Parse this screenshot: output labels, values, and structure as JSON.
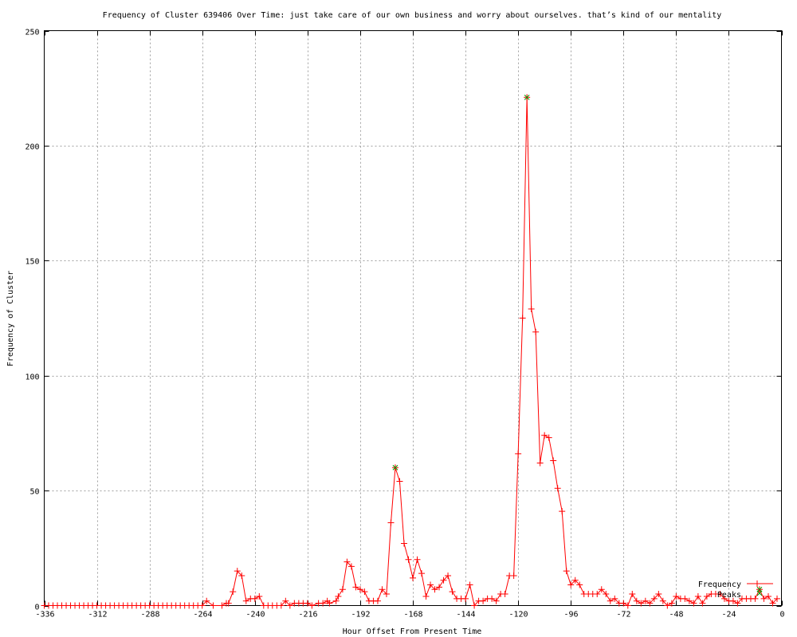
{
  "chart_data": {
    "type": "line",
    "title": "Frequency of Cluster 639406 Over Time: just take care of our own business and worry about ourselves. that’s kind of our mentality",
    "xlabel": "Hour Offset From Present Time",
    "ylabel": "Frequency of Cluster",
    "xlim": [
      -336,
      0
    ],
    "ylim": [
      0,
      250
    ],
    "xticks": [
      -336,
      -312,
      -288,
      -264,
      -240,
      -216,
      -192,
      -168,
      -144,
      -120,
      -96,
      -72,
      -48,
      -24,
      0
    ],
    "yticks": [
      0,
      50,
      100,
      150,
      200,
      250
    ],
    "grid": true,
    "legend_position": "bottom-right",
    "colors": {
      "frequency": "#ff0000",
      "peaks": "#00a000",
      "grid": "#a0a0a0"
    },
    "series": [
      {
        "name": "Frequency",
        "marker": "plus",
        "points": [
          [
            -336,
            0
          ],
          [
            -334,
            0
          ],
          [
            -332,
            0
          ],
          [
            -330,
            0
          ],
          [
            -328,
            0
          ],
          [
            -326,
            0
          ],
          [
            -324,
            0
          ],
          [
            -322,
            0
          ],
          [
            -320,
            0
          ],
          [
            -318,
            0
          ],
          [
            -316,
            0
          ],
          [
            -314,
            0
          ],
          [
            -312,
            0
          ],
          [
            -310,
            0
          ],
          [
            -308,
            0
          ],
          [
            -306,
            0
          ],
          [
            -304,
            0
          ],
          [
            -302,
            0
          ],
          [
            -300,
            0
          ],
          [
            -298,
            0
          ],
          [
            -296,
            0
          ],
          [
            -294,
            0
          ],
          [
            -292,
            0
          ],
          [
            -290,
            0
          ],
          [
            -288,
            0
          ],
          [
            -286,
            0
          ],
          [
            -284,
            0
          ],
          [
            -282,
            0
          ],
          [
            -280,
            0
          ],
          [
            -278,
            0
          ],
          [
            -276,
            0
          ],
          [
            -274,
            0
          ],
          [
            -272,
            0
          ],
          [
            -270,
            0
          ],
          [
            -268,
            0
          ],
          [
            -266,
            0
          ],
          [
            -264,
            0
          ],
          [
            -262,
            2
          ],
          [
            -259,
            0
          ],
          [
            -255,
            0
          ],
          [
            -253,
            1
          ],
          [
            -252,
            1
          ],
          [
            -250,
            6
          ],
          [
            -248,
            15
          ],
          [
            -246,
            13
          ],
          [
            -244,
            2
          ],
          [
            -242,
            3
          ],
          [
            -240,
            3
          ],
          [
            -238,
            4
          ],
          [
            -236,
            0
          ],
          [
            -234,
            0
          ],
          [
            -232,
            0
          ],
          [
            -230,
            0
          ],
          [
            -228,
            0
          ],
          [
            -226,
            2
          ],
          [
            -224,
            0
          ],
          [
            -222,
            1
          ],
          [
            -220,
            1
          ],
          [
            -218,
            1
          ],
          [
            -216,
            1
          ],
          [
            -214,
            0
          ],
          [
            -211,
            1
          ],
          [
            -209,
            1
          ],
          [
            -207,
            2
          ],
          [
            -206,
            1
          ],
          [
            -203,
            2
          ],
          [
            -202,
            4
          ],
          [
            -200,
            7
          ],
          [
            -198,
            19
          ],
          [
            -196,
            17
          ],
          [
            -194,
            8
          ],
          [
            -192,
            7
          ],
          [
            -190,
            6
          ],
          [
            -188,
            2
          ],
          [
            -186,
            2
          ],
          [
            -184,
            2
          ],
          [
            -182,
            7
          ],
          [
            -180,
            5
          ],
          [
            -178,
            36
          ],
          [
            -176,
            60
          ],
          [
            -174,
            54
          ],
          [
            -172,
            27
          ],
          [
            -170,
            20
          ],
          [
            -168,
            12
          ],
          [
            -166,
            20
          ],
          [
            -164,
            14
          ],
          [
            -162,
            4
          ],
          [
            -160,
            9
          ],
          [
            -158,
            7
          ],
          [
            -156,
            8
          ],
          [
            -154,
            11
          ],
          [
            -152,
            13
          ],
          [
            -150,
            6
          ],
          [
            -148,
            3
          ],
          [
            -146,
            3
          ],
          [
            -144,
            3
          ],
          [
            -142,
            9
          ],
          [
            -140,
            0
          ],
          [
            -138,
            2
          ],
          [
            -136,
            2
          ],
          [
            -134,
            3
          ],
          [
            -132,
            3
          ],
          [
            -130,
            2
          ],
          [
            -128,
            5
          ],
          [
            -126,
            5
          ],
          [
            -124,
            13
          ],
          [
            -122,
            13
          ],
          [
            -120,
            66
          ],
          [
            -118,
            125
          ],
          [
            -116,
            221
          ],
          [
            -114,
            129
          ],
          [
            -112,
            119
          ],
          [
            -110,
            62
          ],
          [
            -108,
            74
          ],
          [
            -106,
            73
          ],
          [
            -104,
            63
          ],
          [
            -102,
            51
          ],
          [
            -100,
            41
          ],
          [
            -98,
            15
          ],
          [
            -96,
            9
          ],
          [
            -94,
            11
          ],
          [
            -92,
            9
          ],
          [
            -90,
            5
          ],
          [
            -88,
            5
          ],
          [
            -86,
            5
          ],
          [
            -84,
            5
          ],
          [
            -82,
            7
          ],
          [
            -80,
            5
          ],
          [
            -78,
            2
          ],
          [
            -76,
            3
          ],
          [
            -74,
            1
          ],
          [
            -72,
            1
          ],
          [
            -70,
            0
          ],
          [
            -68,
            5
          ],
          [
            -66,
            2
          ],
          [
            -64,
            1
          ],
          [
            -62,
            2
          ],
          [
            -60,
            1
          ],
          [
            -58,
            3
          ],
          [
            -56,
            5
          ],
          [
            -54,
            2
          ],
          [
            -52,
            0
          ],
          [
            -50,
            1
          ],
          [
            -48,
            4
          ],
          [
            -46,
            3
          ],
          [
            -44,
            3
          ],
          [
            -42,
            2
          ],
          [
            -40,
            1
          ],
          [
            -38,
            4
          ],
          [
            -36,
            1
          ],
          [
            -34,
            4
          ],
          [
            -32,
            5
          ],
          [
            -30,
            5
          ],
          [
            -28,
            5
          ],
          [
            -26,
            3
          ],
          [
            -24,
            2
          ],
          [
            -22,
            2
          ],
          [
            -20,
            1
          ],
          [
            -18,
            3
          ],
          [
            -16,
            3
          ],
          [
            -14,
            3
          ],
          [
            -12,
            3
          ],
          [
            -10,
            7
          ],
          [
            -8,
            3
          ],
          [
            -6,
            4
          ],
          [
            -4,
            1
          ],
          [
            -2,
            3
          ]
        ]
      },
      {
        "name": "Peaks",
        "marker": "x",
        "points": [
          [
            -176,
            60
          ],
          [
            -116,
            221
          ],
          [
            -10,
            7
          ]
        ]
      }
    ]
  }
}
